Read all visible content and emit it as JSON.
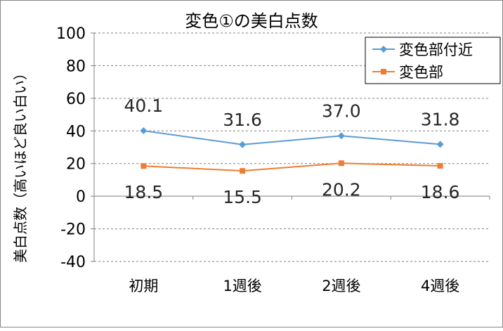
{
  "chart_data": {
    "type": "line",
    "title": "変色①の美白点数",
    "ylabel": "美白点数（高いほど良い白い）",
    "xlabel": "",
    "categories": [
      "初期",
      "1週後",
      "2週後",
      "4週後"
    ],
    "ylim": [
      -40,
      100
    ],
    "yticks": [
      100,
      80,
      60,
      40,
      20,
      0,
      -20,
      -40
    ],
    "grid": true,
    "legend_position": "top-right",
    "series": [
      {
        "name": "変色部付近",
        "values": [
          40.1,
          31.6,
          37.0,
          31.8
        ],
        "labels": [
          "40.1",
          "31.6",
          "37.0",
          "31.8"
        ],
        "color": "#5B9BD5",
        "marker": "diamond"
      },
      {
        "name": "変色部",
        "values": [
          18.5,
          15.5,
          20.2,
          18.6
        ],
        "labels": [
          "18.5",
          "15.5",
          "20.2",
          "18.6"
        ],
        "color": "#ED7D31",
        "marker": "square"
      }
    ]
  }
}
